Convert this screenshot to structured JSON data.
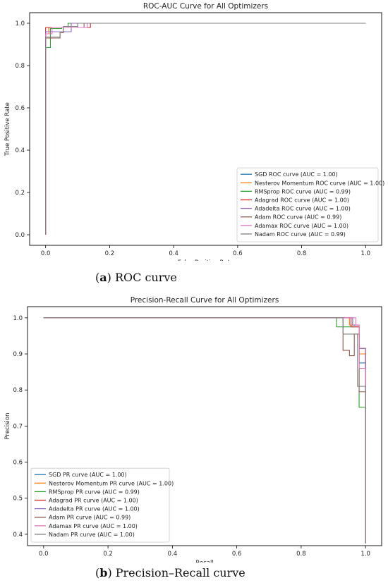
{
  "captions": {
    "a_tag": "a",
    "a_text": "ROC curve",
    "b_tag": "b",
    "b_text": "Precision–Recall curve"
  },
  "chart_data": [
    {
      "type": "line",
      "title": "ROC-AUC Curve for All Optimizers",
      "xlabel": "False Positive Rate",
      "ylabel": "True Positive Rate",
      "xlim": [
        -0.05,
        1.05
      ],
      "ylim": [
        -0.05,
        1.05
      ],
      "xticks": [
        "0.0",
        "0.2",
        "0.4",
        "0.6",
        "0.8",
        "1.0"
      ],
      "yticks": [
        "0.0",
        "0.2",
        "0.4",
        "0.6",
        "0.8",
        "1.0"
      ],
      "legend_position": "lower-right",
      "series": [
        {
          "name": "SGD ROC curve (AUC = 1.00)",
          "color": "#1f77b4",
          "x": [
            0,
            0,
            0.01,
            0.01,
            0.1,
            0.1,
            1
          ],
          "y": [
            0,
            0.96,
            0.96,
            0.98,
            0.98,
            1.0,
            1.0
          ]
        },
        {
          "name": "Nesterov Momentum ROC curve (AUC = 1.00)",
          "color": "#ff7f0e",
          "x": [
            0,
            0,
            0.01,
            0.01,
            0.08,
            0.08,
            1
          ],
          "y": [
            0,
            0.95,
            0.95,
            0.98,
            0.98,
            1.0,
            1.0
          ]
        },
        {
          "name": "RMSprop ROC curve (AUC = 0.99)",
          "color": "#2ca02c",
          "x": [
            0,
            0,
            0.015,
            0.015,
            0.05,
            0.05,
            0.07,
            0.07,
            1
          ],
          "y": [
            0,
            0.885,
            0.885,
            0.975,
            0.975,
            0.98,
            0.98,
            1.0,
            1.0
          ]
        },
        {
          "name": "Adagrad ROC curve (AUC = 1.00)",
          "color": "#d62728",
          "x": [
            0,
            0,
            0.14,
            0.14,
            1
          ],
          "y": [
            0,
            0.98,
            0.98,
            1.0,
            1.0
          ]
        },
        {
          "name": "Adadelta ROC curve (AUC = 1.00)",
          "color": "#9467bd",
          "x": [
            0,
            0,
            0.08,
            0.08,
            1
          ],
          "y": [
            0,
            0.96,
            0.96,
            1.0,
            1.0
          ]
        },
        {
          "name": "Adam ROC curve (AUC = 0.99)",
          "color": "#8c564b",
          "x": [
            0,
            0,
            0.045,
            0.045,
            0.055,
            0.055,
            0.12,
            0.12,
            1
          ],
          "y": [
            0,
            0.93,
            0.93,
            0.955,
            0.955,
            0.98,
            0.98,
            1.0,
            1.0
          ]
        },
        {
          "name": "Adamax ROC curve (AUC = 1.00)",
          "color": "#e377c2",
          "x": [
            0,
            0,
            0.02,
            0.02,
            0.13,
            0.13,
            1
          ],
          "y": [
            0,
            0.95,
            0.95,
            0.98,
            0.98,
            1.0,
            1.0
          ]
        },
        {
          "name": "Nadam ROC curve (AUC = 0.99)",
          "color": "#7f7f7f",
          "x": [
            0,
            0,
            0.045,
            0.045,
            0.055,
            0.055,
            0.1,
            0.1,
            1
          ],
          "y": [
            0,
            0.935,
            0.935,
            0.96,
            0.96,
            0.985,
            0.985,
            1.0,
            1.0
          ]
        }
      ]
    },
    {
      "type": "line",
      "title": "Precision-Recall Curve for All Optimizers",
      "xlabel": "Recall",
      "ylabel": "Precision",
      "xlim": [
        -0.05,
        1.05
      ],
      "ylim": [
        0.3685,
        1.031
      ],
      "xticks": [
        "0.0",
        "0.2",
        "0.4",
        "0.6",
        "0.8",
        "1.0"
      ],
      "yticks": [
        "0.4",
        "0.5",
        "0.6",
        "0.7",
        "0.8",
        "0.9",
        "1.0"
      ],
      "legend_position": "lower-left",
      "series": [
        {
          "name": "SGD PR curve (AUC = 1.00)",
          "color": "#1f77b4",
          "x": [
            0,
            0.96,
            0.96,
            0.98,
            0.98,
            1.0,
            1.0
          ],
          "y": [
            1.0,
            1.0,
            0.98,
            0.98,
            0.875,
            0.875,
            0.375
          ]
        },
        {
          "name": "Nesterov Momentum PR curve (AUC = 1.00)",
          "color": "#ff7f0e",
          "x": [
            0,
            0.95,
            0.95,
            0.98,
            0.98,
            1.0,
            1.0
          ],
          "y": [
            1.0,
            1.0,
            0.98,
            0.98,
            0.9,
            0.9,
            0.375
          ]
        },
        {
          "name": "RMSprop PR curve (AUC = 0.99)",
          "color": "#2ca02c",
          "x": [
            0,
            0.91,
            0.91,
            0.98,
            0.98,
            1.0,
            1.0
          ],
          "y": [
            1.0,
            1.0,
            0.975,
            0.975,
            0.752,
            0.752,
            0.375
          ]
        },
        {
          "name": "Adagrad PR curve (AUC = 1.00)",
          "color": "#d62728",
          "x": [
            0,
            0.955,
            0.955,
            0.98,
            0.98,
            1.0,
            1.0
          ],
          "y": [
            1.0,
            1.0,
            0.975,
            0.975,
            0.915,
            0.915,
            0.375
          ]
        },
        {
          "name": "Adadelta PR curve (AUC = 1.00)",
          "color": "#9467bd",
          "x": [
            0,
            0.96,
            0.96,
            0.98,
            0.98,
            1.0,
            1.0
          ],
          "y": [
            1.0,
            1.0,
            0.98,
            0.98,
            0.915,
            0.915,
            0.375
          ]
        },
        {
          "name": "Adam PR curve (AUC = 0.99)",
          "color": "#8c564b",
          "x": [
            0,
            0.93,
            0.93,
            0.95,
            0.95,
            0.965,
            0.965,
            0.98,
            0.98,
            1.0,
            1.0
          ],
          "y": [
            1.0,
            1.0,
            0.91,
            0.91,
            0.895,
            0.895,
            0.955,
            0.955,
            0.795,
            0.795,
            0.375
          ]
        },
        {
          "name": "Adamax PR curve (AUC = 1.00)",
          "color": "#e377c2",
          "x": [
            0,
            0.97,
            0.97,
            0.98,
            0.98,
            1.0,
            1.0
          ],
          "y": [
            1.0,
            1.0,
            0.98,
            0.98,
            0.86,
            0.86,
            0.375
          ]
        },
        {
          "name": "Nadam PR curve (AUC = 1.00)",
          "color": "#7f7f7f",
          "x": [
            0,
            0.93,
            0.93,
            0.975,
            0.975,
            1.0,
            1.0
          ],
          "y": [
            1.0,
            1.0,
            0.955,
            0.955,
            0.81,
            0.81,
            0.375
          ]
        }
      ]
    }
  ]
}
